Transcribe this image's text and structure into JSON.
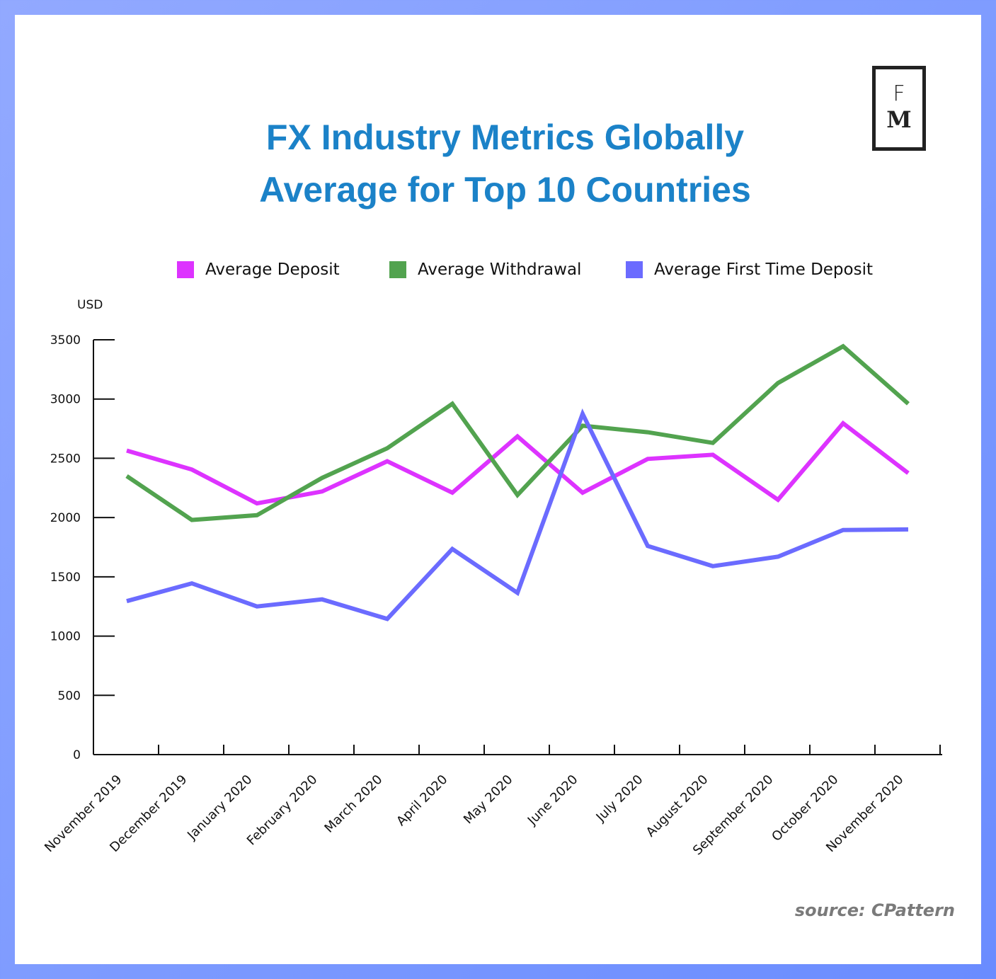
{
  "title": {
    "line1": "FX Industry Metrics Globally",
    "line2": "Average for Top 10 Countries"
  },
  "logo": {
    "top_letter": "F",
    "bottom_letter": "M"
  },
  "source": "source: CPattern",
  "colors": {
    "deposit": "#dd33ff",
    "withdrawal": "#52a34f",
    "first_time_deposit": "#6b6bff",
    "title": "#1b82c8",
    "border": "#7f9cff"
  },
  "chart_data": {
    "type": "line",
    "title": "FX Industry Metrics Globally Average for Top 10 Countries",
    "xlabel": "",
    "ylabel": "USD",
    "ylim": [
      0,
      3500
    ],
    "yticks": [
      0,
      500,
      1000,
      1500,
      2000,
      2500,
      3000,
      3500
    ],
    "grid": false,
    "legend": "top",
    "categories": [
      "November 2019",
      "December 2019",
      "January 2020",
      "February 2020",
      "March 2020",
      "April 2020",
      "May 2020",
      "June 2020",
      "July 2020",
      "August 2020",
      "September 2020",
      "October 2020",
      "November 2020"
    ],
    "series": [
      {
        "name": "Average Deposit",
        "color": "#dd33ff",
        "values": [
          2565,
          2405,
          2120,
          2220,
          2475,
          2210,
          2685,
          2210,
          2495,
          2530,
          2150,
          2795,
          2375
        ]
      },
      {
        "name": "Average Withdrawal",
        "color": "#52a34f",
        "values": [
          2350,
          1980,
          2020,
          2335,
          2585,
          2960,
          2190,
          2775,
          2720,
          2630,
          3135,
          3445,
          2960
        ]
      },
      {
        "name": "Average First Time Deposit",
        "color": "#6b6bff",
        "values": [
          1295,
          1445,
          1250,
          1310,
          1145,
          1735,
          1365,
          2875,
          1760,
          1590,
          1670,
          1895,
          1900
        ]
      }
    ]
  }
}
